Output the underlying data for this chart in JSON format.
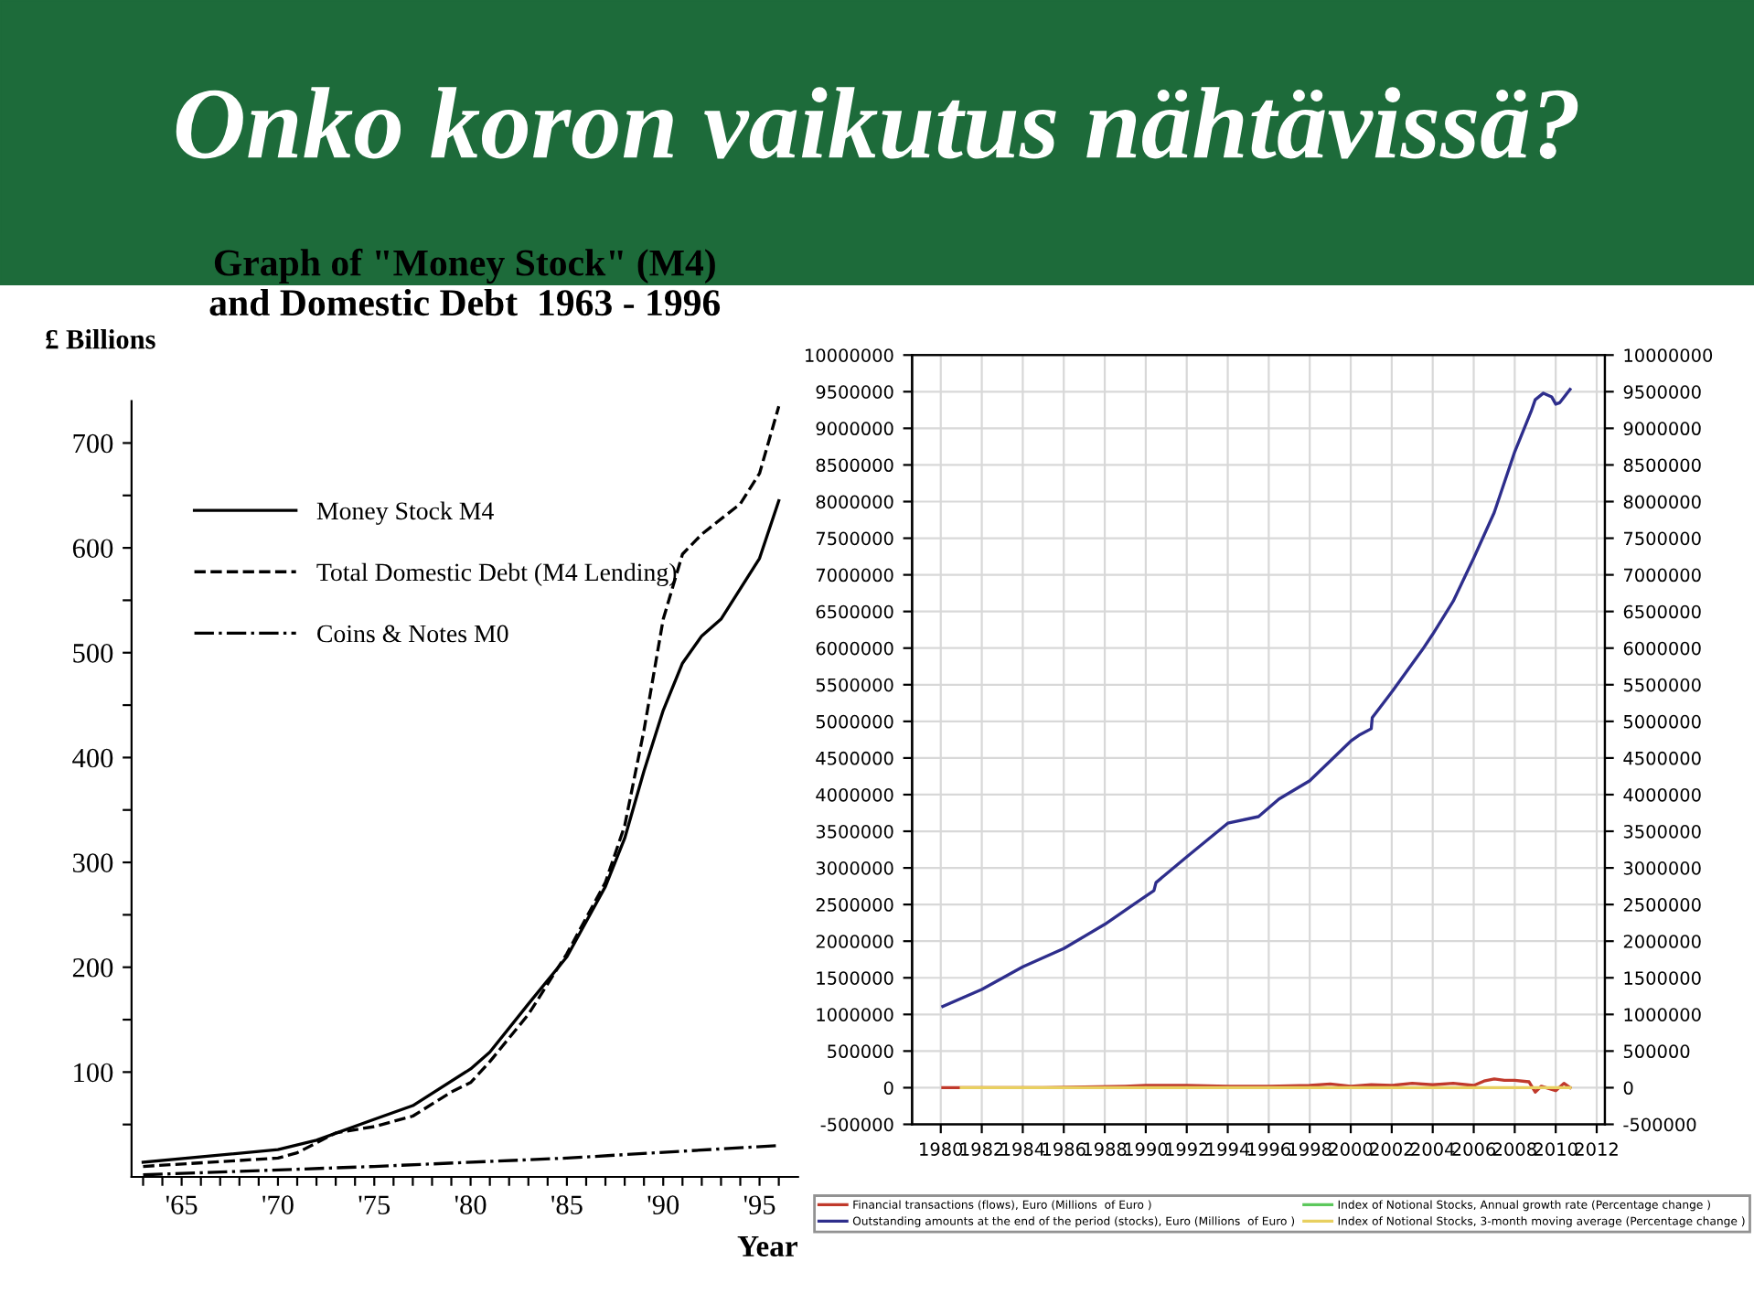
{
  "chart_data": [
    {
      "type": "other",
      "title": "Onko koron vaikutus nähtävissä?"
    },
    {
      "type": "line",
      "title": "Graph of \"Money Stock\" (M4)\nand Domestic Debt  1963 - 1996",
      "xlabel": "Year",
      "ylabel": "£ Billions",
      "legend": "top left",
      "grid": false,
      "xlim": [
        1962.4,
        1997
      ],
      "ylim": [
        0,
        740
      ],
      "xticks": [
        {
          "value": 1963,
          "label": null
        },
        {
          "value": 1964,
          "label": null
        },
        {
          "value": 1965,
          "label": "'65"
        },
        {
          "value": 1966,
          "label": null
        },
        {
          "value": 1967,
          "label": null
        },
        {
          "value": 1968,
          "label": null
        },
        {
          "value": 1969,
          "label": null
        },
        {
          "value": 1970,
          "label": "'70"
        },
        {
          "value": 1971,
          "label": null
        },
        {
          "value": 1972,
          "label": null
        },
        {
          "value": 1973,
          "label": null
        },
        {
          "value": 1974,
          "label": null
        },
        {
          "value": 1975,
          "label": "'75"
        },
        {
          "value": 1976,
          "label": null
        },
        {
          "value": 1977,
          "label": null
        },
        {
          "value": 1978,
          "label": null
        },
        {
          "value": 1979,
          "label": null
        },
        {
          "value": 1980,
          "label": "'80"
        },
        {
          "value": 1981,
          "label": null
        },
        {
          "value": 1982,
          "label": null
        },
        {
          "value": 1983,
          "label": null
        },
        {
          "value": 1984,
          "label": null
        },
        {
          "value": 1985,
          "label": "'85"
        },
        {
          "value": 1986,
          "label": null
        },
        {
          "value": 1987,
          "label": null
        },
        {
          "value": 1988,
          "label": null
        },
        {
          "value": 1989,
          "label": null
        },
        {
          "value": 1990,
          "label": "'90"
        },
        {
          "value": 1991,
          "label": null
        },
        {
          "value": 1992,
          "label": null
        },
        {
          "value": 1993,
          "label": null
        },
        {
          "value": 1994,
          "label": null
        },
        {
          "value": 1995,
          "label": "'95"
        },
        {
          "value": 1996,
          "label": null
        }
      ],
      "yticks": [
        {
          "value": 50,
          "label": null
        },
        100,
        {
          "value": 150,
          "label": null
        },
        200,
        {
          "value": 250,
          "label": null
        },
        300,
        {
          "value": 350,
          "label": null
        },
        400,
        {
          "value": 450,
          "label": null
        },
        500,
        {
          "value": 550,
          "label": null
        },
        600,
        {
          "value": 650,
          "label": null
        },
        700
      ],
      "series": [
        {
          "name": "Money Stock M4",
          "color": "#000000",
          "line_style": "solid",
          "x": [
            1963,
            1970,
            1972,
            1975,
            1977,
            1980,
            1981,
            1983,
            1985,
            1987,
            1988,
            1989,
            1990,
            1991,
            1992,
            1993,
            1994,
            1995,
            1996
          ],
          "values": [
            14,
            26,
            35,
            55,
            68,
            103,
            119,
            165,
            210,
            277,
            323,
            387,
            445,
            490,
            516,
            532,
            561,
            590,
            645
          ]
        },
        {
          "name": "Total Domestic Debt (M4 Lending)",
          "color": "#000000",
          "line_style": "dashed",
          "x": [
            1963,
            1970,
            1971,
            1973,
            1975,
            1977,
            1979,
            1980,
            1981,
            1983,
            1985,
            1987,
            1988,
            1989,
            1990,
            1991,
            1992,
            1994,
            1995,
            1996
          ],
          "values": [
            10,
            18,
            23,
            42,
            48,
            58,
            81,
            90,
            110,
            155,
            213,
            281,
            335,
            426,
            532,
            594,
            613,
            642,
            671,
            735
          ]
        },
        {
          "name": "Coins & Notes M0",
          "color": "#000000",
          "line_style": "dashdot",
          "x": [
            1963,
            1975,
            1985,
            1996
          ],
          "values": [
            2,
            10,
            18,
            30
          ]
        }
      ]
    },
    {
      "type": "line",
      "legend": "bottom",
      "grid": true,
      "xlim": [
        1978.6,
        2012.4
      ],
      "ylim": [
        -500000,
        10000000
      ],
      "y2lim": [
        -500000,
        10000000
      ],
      "xticks": [
        1980,
        1982,
        1984,
        1986,
        1988,
        1990,
        1992,
        1994,
        1996,
        1998,
        2000,
        2002,
        2004,
        2006,
        2008,
        2010,
        2012
      ],
      "yticks": [
        -500000,
        0,
        500000,
        1000000,
        1500000,
        2000000,
        2500000,
        3000000,
        3500000,
        4000000,
        4500000,
        5000000,
        5500000,
        6000000,
        6500000,
        7000000,
        7500000,
        8000000,
        8500000,
        9000000,
        9500000,
        10000000
      ],
      "y2ticks": [
        -500000,
        0,
        500000,
        1000000,
        1500000,
        2000000,
        2500000,
        3000000,
        3500000,
        4000000,
        4500000,
        5000000,
        5500000,
        6000000,
        6500000,
        7000000,
        7500000,
        8000000,
        8500000,
        9000000,
        9500000,
        10000000
      ],
      "series": [
        {
          "name": "Financial transactions (flows), Euro (Millions  of Euro )",
          "color": "#c0392b",
          "x": [
            1980.1,
            1985,
            1989,
            1990,
            1992,
            1994,
            1996,
            1998,
            1999,
            2000,
            2001,
            2002,
            2003,
            2004,
            2005,
            2006,
            2006.5,
            2007,
            2007.5,
            2008,
            2008.7,
            2009,
            2009.3,
            2010,
            2010.4,
            2010.7
          ],
          "values": [
            0,
            0,
            20000,
            30000,
            30000,
            20000,
            20000,
            30000,
            50000,
            20000,
            40000,
            30000,
            60000,
            40000,
            60000,
            30000,
            90000,
            120000,
            100000,
            100000,
            80000,
            -60000,
            20000,
            -40000,
            60000,
            0
          ]
        },
        {
          "name": "Outstanding amounts at the end of the period (stocks), Euro (Millions  of Euro )",
          "color": "#2e2e8c",
          "x": [
            1980.1,
            1982,
            1984,
            1986,
            1988,
            1989.5,
            1990.4,
            1990.5,
            1992,
            1994,
            1995.5,
            1996.5,
            1998,
            2000,
            2000.4,
            2001,
            2001.05,
            2002,
            2003.5,
            2004,
            2005,
            2006,
            2007,
            2008,
            2008.8,
            2009,
            2009.4,
            2009.8,
            2010,
            2010.2,
            2010.7
          ],
          "values": [
            1110000,
            1340000,
            1650000,
            1900000,
            2230000,
            2520000,
            2690000,
            2800000,
            3150000,
            3610000,
            3700000,
            3940000,
            4190000,
            4730000,
            4810000,
            4900000,
            5050000,
            5400000,
            5980000,
            6190000,
            6640000,
            7230000,
            7850000,
            8680000,
            9230000,
            9390000,
            9480000,
            9430000,
            9330000,
            9350000,
            9530000
          ]
        },
        {
          "name": "Index of Notional Stocks, Annual growth rate (Percentage change )",
          "color": "#5cc85c"
        },
        {
          "name": "Index of Notional Stocks, 3-month moving average (Percentage change )",
          "color": "#e8d060",
          "x": [
            1981,
            2010.7
          ],
          "values": [
            0,
            0
          ]
        }
      ]
    }
  ]
}
